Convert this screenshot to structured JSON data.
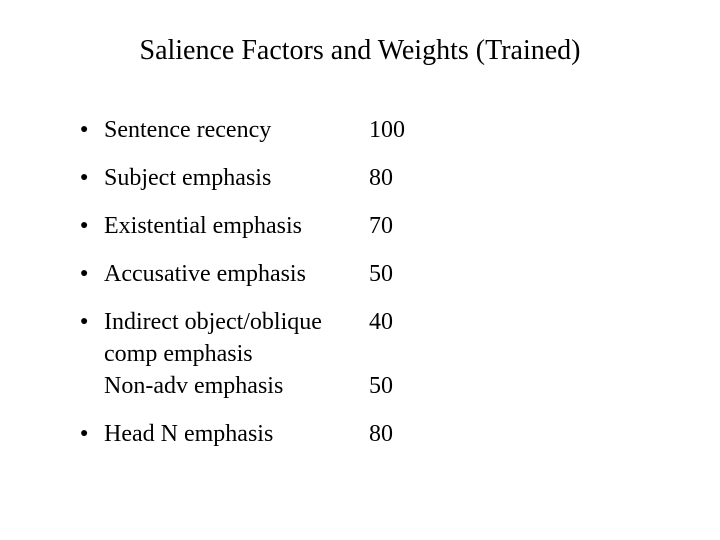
{
  "title": "Salience Factors and Weights (Trained)",
  "table": {
    "type": "table",
    "background_color": "#ffffff",
    "text_color": "#000000",
    "title_fontsize": 28,
    "body_fontsize": 24,
    "font_family": "Times New Roman",
    "bullet_glyph": "●",
    "columns": [
      "factor",
      "weight"
    ],
    "rows": [
      {
        "factor": "Sentence recency",
        "weight": 100,
        "bullet": true,
        "tight": false
      },
      {
        "factor": "Subject emphasis",
        "weight": 80,
        "bullet": true,
        "tight": false
      },
      {
        "factor": "Existential emphasis",
        "weight": 70,
        "bullet": true,
        "tight": false
      },
      {
        "factor": "Accusative emphasis",
        "weight": 50,
        "bullet": true,
        "tight": false
      },
      {
        "factor": "Indirect object/oblique",
        "weight": 40,
        "bullet": true,
        "tight": true
      },
      {
        "factor": "comp emphasis",
        "weight": "",
        "bullet": false,
        "tight": true
      },
      {
        "factor": "Non-adv emphasis",
        "weight": 50,
        "bullet": false,
        "tight": false
      },
      {
        "factor": "Head N emphasis",
        "weight": 80,
        "bullet": true,
        "tight": false
      }
    ]
  }
}
